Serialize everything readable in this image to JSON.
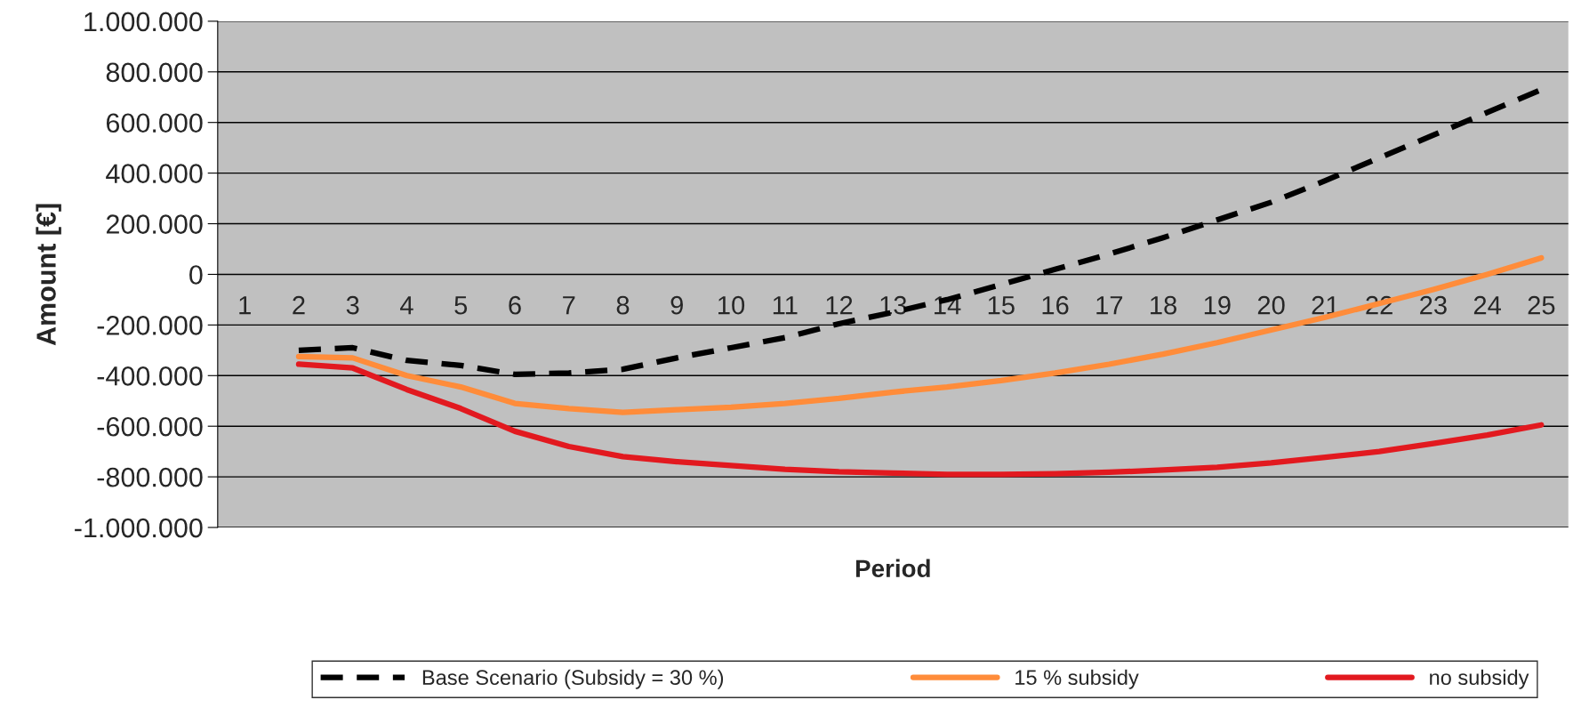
{
  "chart_data": {
    "type": "line",
    "xlabel": "Period",
    "ylabel": "Amount [€]",
    "categories": [
      "1",
      "2",
      "3",
      "4",
      "5",
      "6",
      "7",
      "8",
      "9",
      "10",
      "11",
      "12",
      "13",
      "14",
      "15",
      "16",
      "17",
      "18",
      "19",
      "20",
      "21",
      "22",
      "23",
      "24",
      "25"
    ],
    "series": [
      {
        "name": "Base Scenario (Subsidy = 30 %)",
        "color": "#000000",
        "line_style": "dashed",
        "values": [
          null,
          -300000,
          -290000,
          -340000,
          -360000,
          -395000,
          -390000,
          -375000,
          -330000,
          -290000,
          -250000,
          -195000,
          -150000,
          -100000,
          -40000,
          20000,
          80000,
          145000,
          215000,
          285000,
          370000,
          460000,
          550000,
          640000,
          730000
        ]
      },
      {
        "name": "15 % subsidy",
        "color": "#ff8c3a",
        "line_style": "solid",
        "values": [
          null,
          -325000,
          -330000,
          -400000,
          -445000,
          -510000,
          -530000,
          -545000,
          -535000,
          -525000,
          -510000,
          -490000,
          -465000,
          -445000,
          -420000,
          -390000,
          -355000,
          -315000,
          -270000,
          -220000,
          -170000,
          -115000,
          -60000,
          0,
          65000
        ]
      },
      {
        "name": "no subsidy",
        "color": "#e2191f",
        "line_style": "solid",
        "values": [
          null,
          -355000,
          -370000,
          -455000,
          -530000,
          -620000,
          -680000,
          -720000,
          -740000,
          -755000,
          -770000,
          -780000,
          -785000,
          -790000,
          -790000,
          -788000,
          -782000,
          -773000,
          -762000,
          -745000,
          -723000,
          -700000,
          -668000,
          -635000,
          -595000
        ]
      }
    ],
    "ylim": [
      -1000000,
      1000000
    ],
    "yticks": [
      {
        "value": -1000000,
        "label": "-1.000.000"
      },
      {
        "value": -800000,
        "label": "-800.000"
      },
      {
        "value": -600000,
        "label": "-600.000"
      },
      {
        "value": -400000,
        "label": "-400.000"
      },
      {
        "value": -200000,
        "label": "-200.000"
      },
      {
        "value": 0,
        "label": "0"
      },
      {
        "value": 200000,
        "label": "200.000"
      },
      {
        "value": 400000,
        "label": "400.000"
      },
      {
        "value": 600000,
        "label": "600.000"
      },
      {
        "value": 800000,
        "label": "800.000"
      },
      {
        "value": 1000000,
        "label": "1.000.000"
      }
    ],
    "grid": "y",
    "legend": "bottom",
    "marker": "none"
  }
}
